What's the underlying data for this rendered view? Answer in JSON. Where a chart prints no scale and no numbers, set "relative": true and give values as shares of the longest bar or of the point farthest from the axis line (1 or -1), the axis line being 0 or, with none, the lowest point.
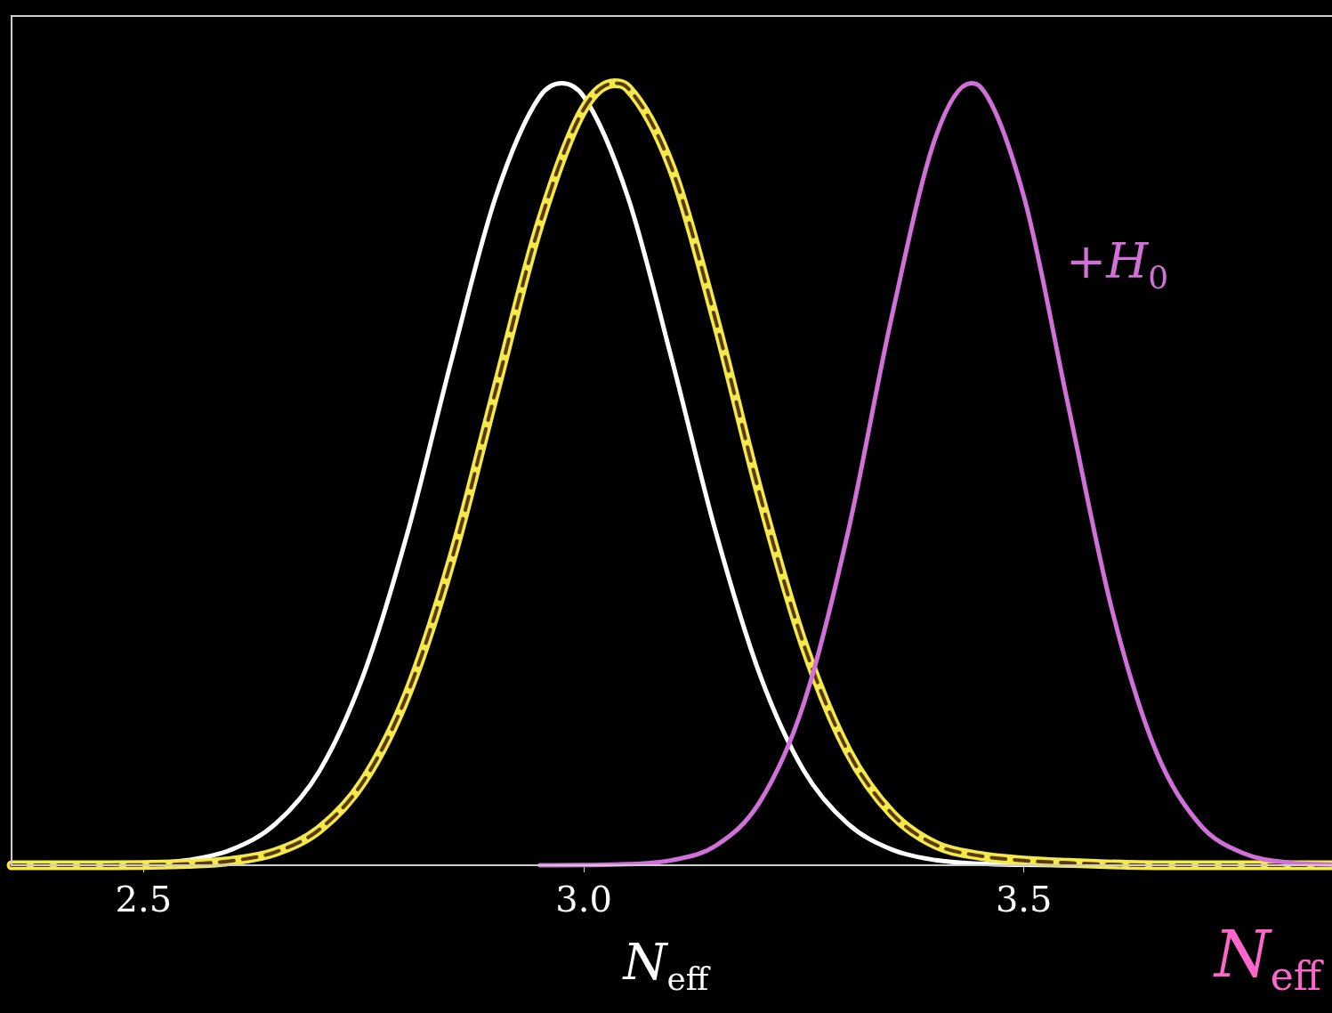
{
  "chart_data": {
    "type": "line",
    "relative": true,
    "xlabel": "N$_{eff}$",
    "marker": "none",
    "legend": false,
    "xlim": [
      2.35,
      3.85
    ],
    "xticks": [
      2.5,
      {
        "value": 3,
        "label": "3.0"
      },
      3.5
    ],
    "annotations": [
      "+H$_{0}$",
      "N$_{eff}$"
    ],
    "series": [
      {
        "color": "#ffffff",
        "line_style": "solid",
        "x": [
          2.35,
          2.4,
          2.45,
          2.5,
          2.55,
          2.6,
          2.65,
          2.7,
          2.75,
          2.8,
          2.85,
          2.9,
          2.95,
          2.975,
          3.0,
          3.05,
          3.1,
          3.15,
          3.2,
          3.25,
          3.3,
          3.35,
          3.4,
          3.45,
          3.5,
          3.55,
          3.6,
          3.85
        ],
        "values": [
          0,
          0.0001,
          0.0005,
          0.0019,
          0.0065,
          0.02,
          0.053,
          0.121,
          0.244,
          0.426,
          0.647,
          0.855,
          0.983,
          1,
          0.983,
          0.855,
          0.647,
          0.426,
          0.244,
          0.121,
          0.053,
          0.02,
          0.0065,
          0.0019,
          0.0005,
          0.0001,
          0,
          0
        ]
      },
      {
        "color": "#f5e94a",
        "line_style": "solid",
        "x": [
          2.35,
          2.4,
          2.45,
          2.5,
          2.55,
          2.6,
          2.65,
          2.7,
          2.75,
          2.8,
          2.85,
          2.9,
          2.95,
          3.0,
          3.035,
          3.05,
          3.1,
          3.15,
          3.2,
          3.25,
          3.3,
          3.35,
          3.4,
          3.45,
          3.5,
          3.55,
          3.6,
          3.65,
          3.85
        ],
        "values": [
          0,
          0,
          0.0001,
          0.0004,
          0.0016,
          0.0056,
          0.017,
          0.046,
          0.108,
          0.22,
          0.391,
          0.607,
          0.82,
          0.967,
          1,
          0.994,
          0.891,
          0.696,
          0.474,
          0.282,
          0.146,
          0.066,
          0.026,
          0.012,
          0.006,
          0.003,
          0.001,
          0,
          0
        ]
      },
      {
        "color": "#5a3a10",
        "line_style": "dashed",
        "x": [
          2.35,
          2.4,
          2.45,
          2.5,
          2.55,
          2.6,
          2.65,
          2.7,
          2.75,
          2.8,
          2.85,
          2.9,
          2.95,
          3.0,
          3.035,
          3.05,
          3.1,
          3.15,
          3.2,
          3.25,
          3.3,
          3.35,
          3.4,
          3.45,
          3.5,
          3.55,
          3.6,
          3.65,
          3.85
        ],
        "values": [
          0,
          0,
          0.0001,
          0.0004,
          0.0016,
          0.0056,
          0.017,
          0.046,
          0.108,
          0.22,
          0.391,
          0.607,
          0.82,
          0.967,
          1,
          0.994,
          0.891,
          0.696,
          0.474,
          0.282,
          0.146,
          0.066,
          0.026,
          0.012,
          0.006,
          0.003,
          0.001,
          0,
          0
        ]
      },
      {
        "color": "#d070d8",
        "line_style": "solid",
        "x": [
          2.95,
          3.0,
          3.05,
          3.1,
          3.15,
          3.2,
          3.25,
          3.3,
          3.35,
          3.4,
          3.44,
          3.45,
          3.5,
          3.55,
          3.6,
          3.65,
          3.7,
          3.75,
          3.8,
          3.85
        ],
        "values": [
          0,
          0.0002,
          0.0013,
          0.0064,
          0.025,
          0.081,
          0.207,
          0.425,
          0.702,
          0.932,
          1,
          0.996,
          0.855,
          0.59,
          0.327,
          0.146,
          0.052,
          0.015,
          0.0035,
          0.0007
        ]
      }
    ]
  }
}
